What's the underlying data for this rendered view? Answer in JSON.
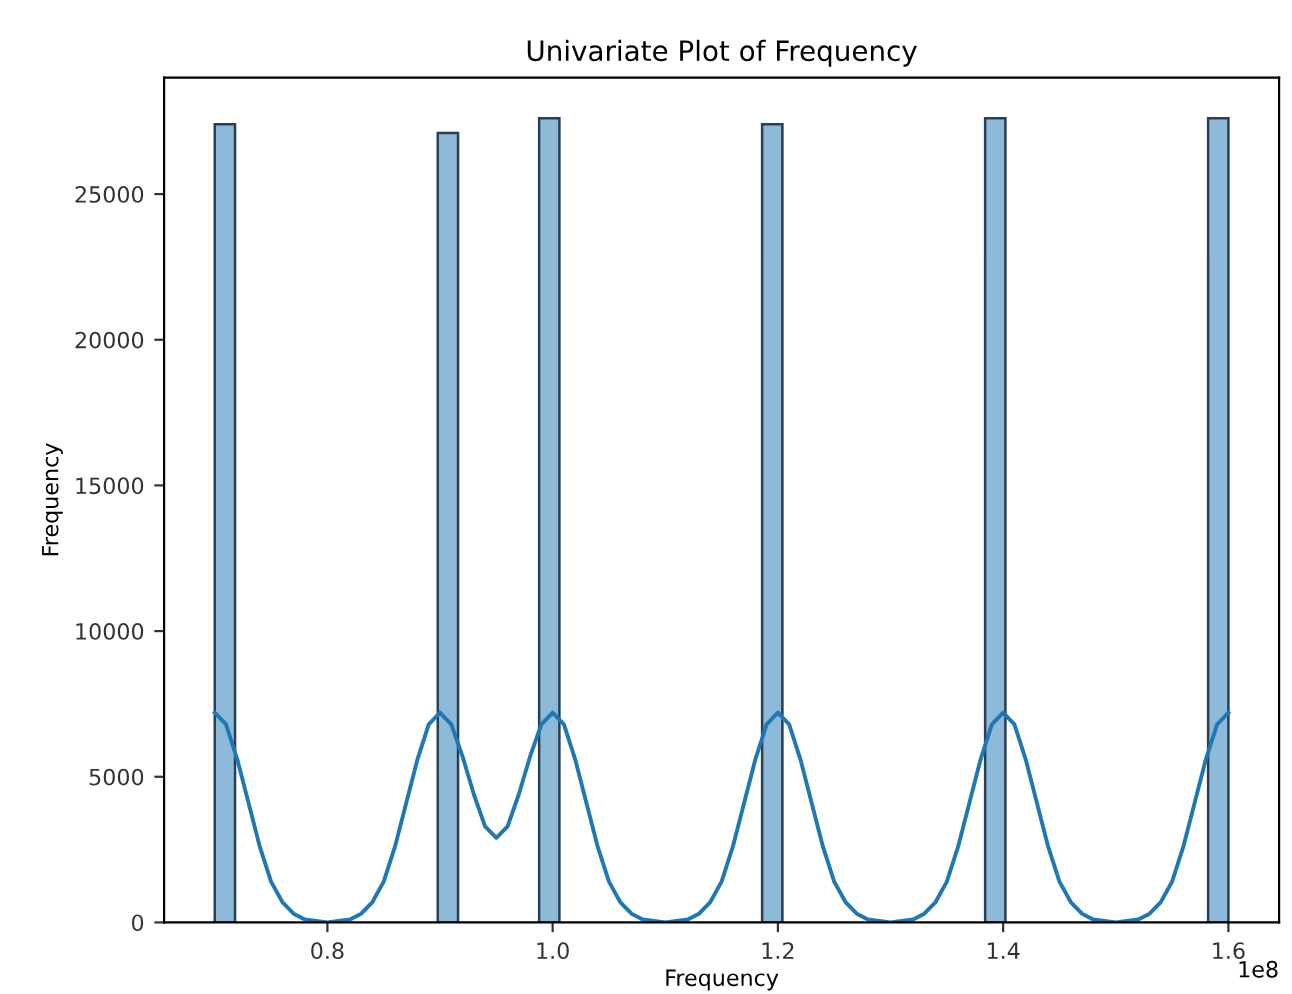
{
  "chart_data": {
    "type": "histogram",
    "title": "Univariate Plot of Frequency",
    "xlabel": "Frequency",
    "ylabel": "Frequency",
    "xlim": [
      0.655,
      1.645
    ],
    "xticks": [
      0.8,
      {
        "value": 1.0,
        "label": "1.0"
      },
      1.2,
      1.4,
      1.6
    ],
    "ylim": [
      0,
      29000
    ],
    "yticks": [
      0,
      5000,
      10000,
      15000,
      20000,
      25000
    ],
    "annotations": [
      "1e8"
    ],
    "grid": false,
    "legend": false,
    "series": [
      {
        "color": "#8ebad9",
        "bins": [
          0.7,
          0.718,
          0.736,
          0.754,
          0.772,
          0.79,
          0.808,
          0.826,
          0.844,
          0.862,
          0.88,
          0.898,
          0.916,
          0.934,
          0.952,
          0.97,
          0.988,
          1.006,
          1.024,
          1.042,
          1.06,
          1.078,
          1.096,
          1.114,
          1.132,
          1.15,
          1.168,
          1.186,
          1.204,
          1.222,
          1.24,
          1.258,
          1.276,
          1.294,
          1.312,
          1.33,
          1.348,
          1.366,
          1.384,
          1.402,
          1.42,
          1.438,
          1.456,
          1.474,
          1.492,
          1.51,
          1.528,
          1.546,
          1.564,
          1.582,
          1.6
        ],
        "values": [
          27400,
          0,
          0,
          0,
          0,
          0,
          0,
          0,
          0,
          0,
          0,
          27100,
          0,
          0,
          0,
          0,
          27600,
          0,
          0,
          0,
          0,
          0,
          0,
          0,
          0,
          0,
          0,
          27400,
          0,
          0,
          0,
          0,
          0,
          0,
          0,
          0,
          0,
          0,
          27600,
          0,
          0,
          0,
          0,
          0,
          0,
          0,
          0,
          0,
          0,
          27600
        ]
      },
      {
        "type": "line",
        "color": "#1f77b4",
        "x": [
          0.7,
          0.71,
          0.72,
          0.73,
          0.74,
          0.75,
          0.76,
          0.77,
          0.78,
          0.8,
          0.82,
          0.83,
          0.84,
          0.85,
          0.86,
          0.87,
          0.88,
          0.89,
          0.9,
          0.91,
          0.92,
          0.93,
          0.94,
          0.95,
          0.96,
          0.97,
          0.98,
          0.99,
          1.0,
          1.01,
          1.02,
          1.03,
          1.04,
          1.05,
          1.06,
          1.07,
          1.08,
          1.1,
          1.12,
          1.13,
          1.14,
          1.15,
          1.16,
          1.17,
          1.18,
          1.19,
          1.2,
          1.21,
          1.22,
          1.23,
          1.24,
          1.25,
          1.26,
          1.27,
          1.28,
          1.3,
          1.32,
          1.33,
          1.34,
          1.35,
          1.36,
          1.37,
          1.38,
          1.39,
          1.4,
          1.41,
          1.42,
          1.43,
          1.44,
          1.45,
          1.46,
          1.47,
          1.48,
          1.5,
          1.52,
          1.53,
          1.54,
          1.55,
          1.56,
          1.57,
          1.58,
          1.59,
          1.6
        ],
        "values": [
          7200,
          6800,
          5600,
          4100,
          2600,
          1400,
          700,
          300,
          100,
          0,
          100,
          300,
          700,
          1400,
          2600,
          4100,
          5600,
          6800,
          7200,
          6800,
          5700,
          4400,
          3300,
          2900,
          3300,
          4400,
          5700,
          6800,
          7200,
          6800,
          5600,
          4100,
          2600,
          1400,
          700,
          300,
          100,
          0,
          100,
          300,
          700,
          1400,
          2600,
          4100,
          5600,
          6800,
          7200,
          6800,
          5600,
          4100,
          2600,
          1400,
          700,
          300,
          100,
          0,
          100,
          300,
          700,
          1400,
          2600,
          4100,
          5600,
          6800,
          7200,
          6800,
          5600,
          4100,
          2600,
          1400,
          700,
          300,
          100,
          0,
          100,
          300,
          700,
          1400,
          2600,
          4100,
          5600,
          6800,
          7200
        ]
      }
    ]
  }
}
